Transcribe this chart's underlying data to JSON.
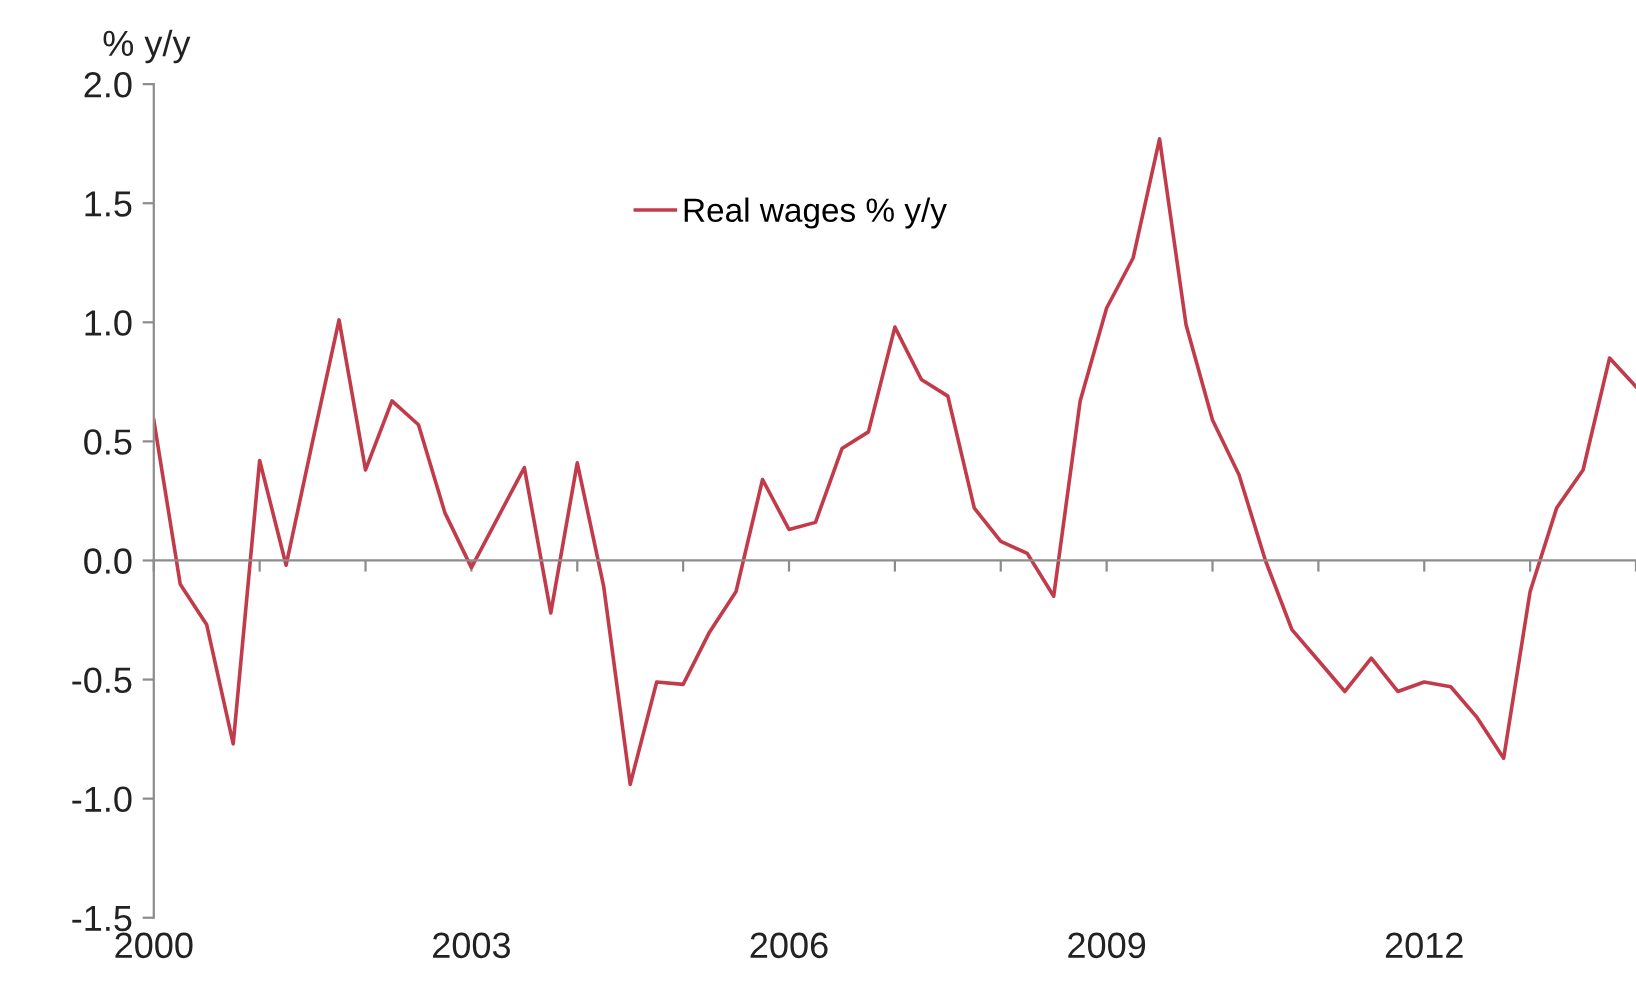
{
  "chart_data": {
    "type": "line",
    "ylabel": "% y/y",
    "x": [
      2000,
      2000.25,
      2000.5,
      2000.75,
      2001,
      2001.25,
      2001.5,
      2001.75,
      2002,
      2002.25,
      2002.5,
      2002.75,
      2003,
      2003.25,
      2003.5,
      2003.75,
      2004,
      2004.25,
      2004.5,
      2004.75,
      2005,
      2005.25,
      2005.5,
      2005.75,
      2006,
      2006.25,
      2006.5,
      2006.75,
      2007,
      2007.25,
      2007.5,
      2007.75,
      2008,
      2008.25,
      2008.5,
      2008.75,
      2009,
      2009.25,
      2009.5,
      2009.75,
      2010,
      2010.25,
      2010.5,
      2010.75,
      2011,
      2011.25,
      2011.5,
      2011.75,
      2012,
      2012.25,
      2012.5,
      2012.75,
      2013,
      2013.25,
      2013.5,
      2013.75,
      2014
    ],
    "series": [
      {
        "name": "Real wages % y/y",
        "color": "#c23b4b",
        "values": [
          0.59,
          -0.1,
          -0.27,
          -0.77,
          0.42,
          -0.02,
          0.5,
          1.01,
          0.38,
          0.67,
          0.57,
          0.2,
          -0.03,
          0.18,
          0.39,
          -0.22,
          0.41,
          -0.11,
          -0.94,
          -0.51,
          -0.52,
          -0.3,
          -0.13,
          0.34,
          0.13,
          0.16,
          0.47,
          0.54,
          0.98,
          0.76,
          0.69,
          0.22,
          0.08,
          0.03,
          -0.15,
          0.67,
          1.06,
          1.27,
          1.77,
          0.99,
          0.59,
          0.36,
          0.0,
          -0.29,
          -0.42,
          -0.55,
          -0.41,
          -0.55,
          -0.51,
          -0.53,
          -0.66,
          -0.83,
          -0.13,
          0.22,
          0.38,
          0.85,
          0.73
        ]
      }
    ],
    "xlim": [
      2000,
      2014
    ],
    "xticks": [
      2000,
      {
        "value": 2001,
        "label": null
      },
      {
        "value": 2002,
        "label": null
      },
      2003,
      {
        "value": 2004,
        "label": null
      },
      {
        "value": 2005,
        "label": null
      },
      2006,
      {
        "value": 2007,
        "label": null
      },
      {
        "value": 2008,
        "label": null
      },
      2009,
      {
        "value": 2010,
        "label": null
      },
      {
        "value": 2011,
        "label": null
      },
      2012,
      {
        "value": 2013,
        "label": null
      },
      {
        "value": 2014,
        "label": null
      }
    ],
    "ylim": [
      -1.5,
      2.0
    ],
    "yticks": [
      {
        "value": -1.5,
        "label": "-1.5"
      },
      {
        "value": -1.0,
        "label": "-1.0"
      },
      {
        "value": -0.5,
        "label": "-0.5"
      },
      {
        "value": 0.0,
        "label": "0.0"
      },
      {
        "value": 0.5,
        "label": "0.5"
      },
      {
        "value": 1.0,
        "label": "1.0"
      },
      {
        "value": 1.5,
        "label": "1.5"
      },
      {
        "value": 2.0,
        "label": "2.0"
      }
    ],
    "legend": "top",
    "marker": "none",
    "line_style": "solid"
  }
}
